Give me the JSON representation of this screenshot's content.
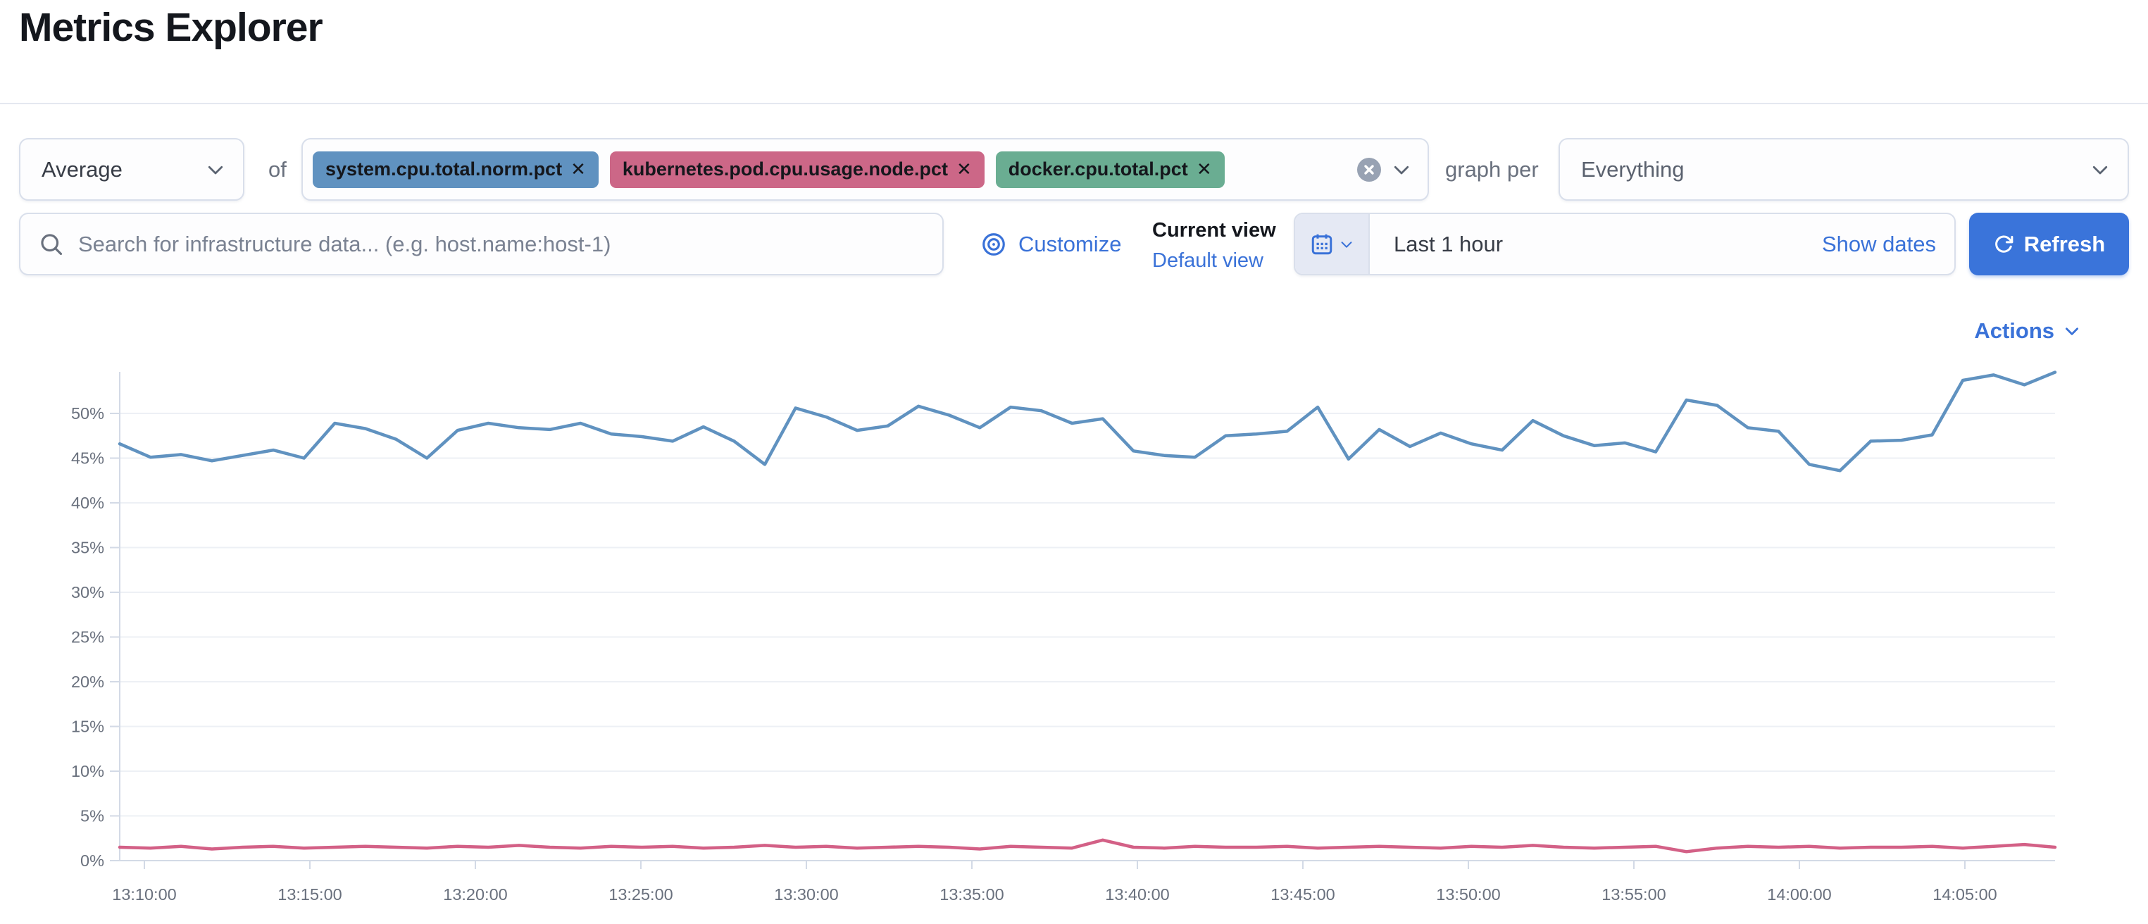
{
  "page": {
    "title": "Metrics Explorer"
  },
  "controls": {
    "aggregation_value": "Average",
    "of_label": "of",
    "metrics": [
      {
        "label": "system.cpu.total.norm.pct",
        "color": "#6092c0"
      },
      {
        "label": "kubernetes.pod.cpu.usage.node.pct",
        "color": "#cc6787"
      },
      {
        "label": "docker.cpu.total.pct",
        "color": "#6aad92"
      }
    ],
    "remove_glyph": "✕",
    "graph_per_label": "graph per",
    "group_by_value": "Everything"
  },
  "search": {
    "placeholder": "Search for infrastructure data... (e.g. host.name:host-1)"
  },
  "view_controls": {
    "customize_label": "Customize",
    "current_view_label": "Current view",
    "view_name": "Default view"
  },
  "time_picker": {
    "range_label": "Last 1 hour",
    "show_dates_label": "Show dates",
    "refresh_label": "Refresh"
  },
  "actions": {
    "label": "Actions"
  },
  "colors": {
    "accent_blue": "#3a72d8",
    "series_blue": "#6092c0",
    "series_pink": "#d36086",
    "grid": "#edf0f5",
    "axis": "#d3dae6"
  },
  "chart_data": {
    "type": "line",
    "title": "",
    "xlabel": "",
    "ylabel": "",
    "grid": true,
    "legend_position": "none",
    "y_unit": "%",
    "ylim": [
      0,
      55
    ],
    "y_ticks": [
      0,
      5,
      10,
      15,
      20,
      25,
      30,
      35,
      40,
      45,
      50
    ],
    "x_ticks": [
      "13:10:00",
      "13:15:00",
      "13:20:00",
      "13:25:00",
      "13:30:00",
      "13:35:00",
      "13:40:00",
      "13:45:00",
      "13:50:00",
      "13:55:00",
      "14:00:00",
      "14:05:00"
    ],
    "series": [
      {
        "name": "system.cpu.total.norm.pct (avg)",
        "color": "#6092c0",
        "values": [
          46.6,
          45.1,
          45.4,
          44.7,
          45.3,
          45.9,
          45.0,
          48.9,
          48.3,
          47.1,
          45.0,
          48.1,
          48.9,
          48.4,
          48.2,
          48.9,
          47.7,
          47.4,
          46.9,
          48.5,
          46.9,
          44.3,
          50.6,
          49.6,
          48.1,
          48.6,
          50.8,
          49.8,
          48.4,
          50.7,
          50.3,
          48.9,
          49.4,
          45.8,
          45.3,
          45.1,
          47.5,
          47.7,
          48.0,
          50.7,
          44.9,
          48.2,
          46.3,
          47.8,
          46.6,
          45.9,
          49.2,
          47.5,
          46.4,
          46.7,
          45.7,
          51.5,
          50.9,
          48.4,
          48.0,
          44.3,
          43.6,
          46.9,
          47.0,
          47.6,
          53.7,
          54.3,
          53.2,
          54.6
        ]
      },
      {
        "name": "kubernetes.pod.cpu.usage.node.pct (avg)",
        "color": "#d36086",
        "values": [
          1.5,
          1.4,
          1.6,
          1.3,
          1.5,
          1.6,
          1.4,
          1.5,
          1.6,
          1.5,
          1.4,
          1.6,
          1.5,
          1.7,
          1.5,
          1.4,
          1.6,
          1.5,
          1.6,
          1.4,
          1.5,
          1.7,
          1.5,
          1.6,
          1.4,
          1.5,
          1.6,
          1.5,
          1.3,
          1.6,
          1.5,
          1.4,
          2.3,
          1.5,
          1.4,
          1.6,
          1.5,
          1.5,
          1.6,
          1.4,
          1.5,
          1.6,
          1.5,
          1.4,
          1.6,
          1.5,
          1.7,
          1.5,
          1.4,
          1.5,
          1.6,
          1.0,
          1.4,
          1.6,
          1.5,
          1.6,
          1.4,
          1.5,
          1.5,
          1.6,
          1.4,
          1.6,
          1.8,
          1.5
        ]
      }
    ]
  }
}
